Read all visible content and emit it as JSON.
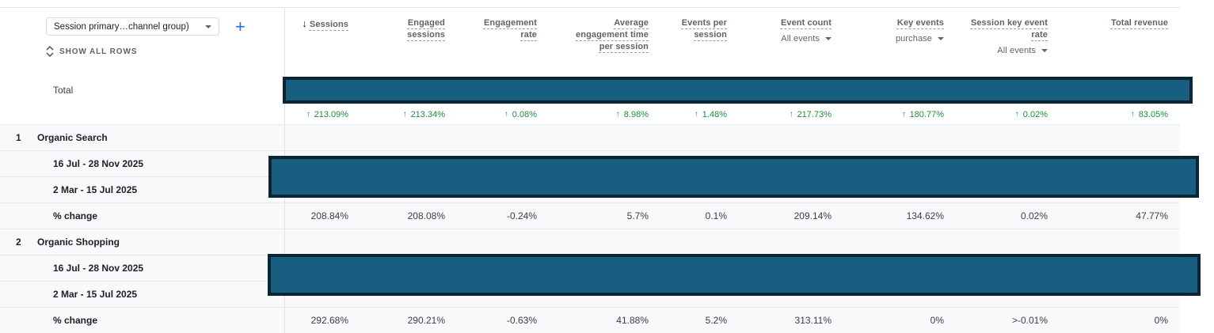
{
  "controls": {
    "dimension_selector": "Session primary…channel group)",
    "add_comparison": "+",
    "show_all_rows": "SHOW ALL ROWS"
  },
  "table": {
    "total_label": "Total",
    "columns": [
      {
        "label": "Sessions",
        "sorted": true
      },
      {
        "label": "Engaged sessions"
      },
      {
        "label": "Engagement rate"
      },
      {
        "label": "Average engagement time per session"
      },
      {
        "label": "Events per session"
      },
      {
        "label": "Event count",
        "filter": "All events"
      },
      {
        "label": "Key events",
        "filter": "purchase"
      },
      {
        "label": "Session key event rate",
        "filter": "All events"
      },
      {
        "label": "Total revenue"
      }
    ],
    "total_change_row": {
      "direction": "up",
      "arrow": "↑",
      "values": [
        "213.09%",
        "213.34%",
        "0.08%",
        "8.98%",
        "1.48%",
        "217.73%",
        "180.77%",
        "0.02%",
        "83.05%"
      ]
    },
    "groups": [
      {
        "index": "1",
        "channel": "Organic Search",
        "rows": [
          {
            "label": "16 Jul - 28 Nov 2025",
            "redacted": true
          },
          {
            "label": "2 Mar - 15 Jul 2025",
            "redacted": true
          },
          {
            "label": "% change",
            "values": [
              "208.84%",
              "208.08%",
              "-0.24%",
              "5.7%",
              "0.1%",
              "209.14%",
              "134.62%",
              "0.02%",
              "47.77%"
            ]
          }
        ]
      },
      {
        "index": "2",
        "channel": "Organic Shopping",
        "rows": [
          {
            "label": "16 Jul - 28 Nov 2025",
            "redacted": true
          },
          {
            "label": "2 Mar - 15 Jul 2025",
            "redacted": true
          },
          {
            "label": "% change",
            "values": [
              "292.68%",
              "290.21%",
              "-0.63%",
              "41.88%",
              "5.2%",
              "313.11%",
              "0%",
              ">-0.01%",
              "0%"
            ]
          }
        ]
      }
    ]
  },
  "colors": {
    "redaction_fill": "#175e80",
    "redaction_border": "#0b2534",
    "positive_green": "#1e8e3e",
    "accent_blue": "#1a73e8"
  }
}
